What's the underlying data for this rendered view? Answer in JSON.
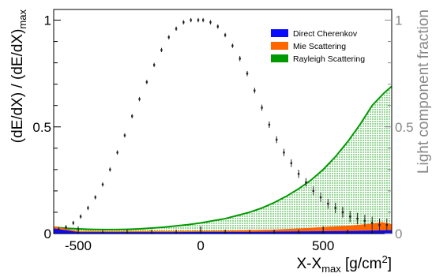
{
  "chart_data": {
    "type": "area",
    "title": "",
    "xlabel": {
      "base": "X-X",
      "sub": "max",
      "unit": " [g/cm",
      "sup": "2",
      "close": "]"
    },
    "ylabel": {
      "base": "(dE/dX) / (dE/dX)",
      "sub": "max"
    },
    "ylabel_right": "Light component fraction",
    "xlim": [
      -600,
      780
    ],
    "ylim": [
      0,
      1.05
    ],
    "ylim_right": [
      0,
      1.05
    ],
    "x_ticks": [
      -500,
      0,
      500
    ],
    "x_tick_labels": [
      "-500",
      "0",
      "500"
    ],
    "y_ticks": [
      0,
      0.5,
      1
    ],
    "y_tick_labels": [
      "0",
      "0.5",
      "1"
    ],
    "y_ticks_right": [
      0,
      0.5,
      1
    ],
    "y_tick_labels_right": [
      "0",
      "0.5",
      "1"
    ],
    "grid": false,
    "legend_position": "top-right",
    "colors": {
      "direct": "#0a0aff",
      "mie": "#ff6600",
      "rayleigh": "#009900",
      "rayleigh_fill": "#b3dbb3",
      "profile": "#222222",
      "right_axis": "#888888"
    },
    "series": [
      {
        "name": "Direct Cherenkov",
        "axis": "right",
        "style": "filled",
        "x": [
          -600,
          -500,
          -400,
          -300,
          -200,
          -100,
          0,
          100,
          200,
          300,
          400,
          500,
          600,
          700,
          780
        ],
        "y": [
          0.02,
          0.003,
          0.003,
          0.003,
          0.003,
          0.003,
          0.004,
          0.004,
          0.004,
          0.005,
          0.006,
          0.007,
          0.008,
          0.01,
          0.012
        ]
      },
      {
        "name": "Mie Scattering",
        "axis": "right",
        "style": "filled",
        "x": [
          -600,
          -500,
          -400,
          -300,
          -200,
          -100,
          0,
          100,
          200,
          300,
          400,
          500,
          600,
          700,
          740,
          780
        ],
        "y": [
          0.03,
          0.008,
          0.007,
          0.007,
          0.008,
          0.008,
          0.009,
          0.01,
          0.012,
          0.015,
          0.02,
          0.027,
          0.033,
          0.042,
          0.05,
          0.04
        ]
      },
      {
        "name": "Rayleigh Scattering",
        "axis": "right",
        "style": "filled",
        "x": [
          -600,
          -550,
          -500,
          -450,
          -400,
          -350,
          -300,
          -250,
          -200,
          -150,
          -100,
          -50,
          0,
          50,
          100,
          150,
          200,
          250,
          300,
          350,
          400,
          450,
          500,
          550,
          600,
          650,
          700,
          750,
          780
        ],
        "y": [
          0.03,
          0.025,
          0.022,
          0.02,
          0.019,
          0.019,
          0.02,
          0.022,
          0.026,
          0.03,
          0.036,
          0.042,
          0.05,
          0.06,
          0.07,
          0.085,
          0.1,
          0.12,
          0.145,
          0.175,
          0.21,
          0.25,
          0.3,
          0.36,
          0.43,
          0.51,
          0.6,
          0.66,
          0.69
        ]
      },
      {
        "name": "",
        "axis": "left",
        "style": "markers-with-errors",
        "x": [
          -580,
          -550,
          -520,
          -490,
          -460,
          -430,
          -400,
          -370,
          -340,
          -310,
          -280,
          -250,
          -220,
          -190,
          -160,
          -130,
          -100,
          -70,
          -40,
          -10,
          10,
          40,
          70,
          100,
          130,
          160,
          190,
          220,
          250,
          280,
          310,
          340,
          370,
          400,
          430,
          460,
          490,
          520,
          550,
          580,
          610,
          640,
          670,
          700,
          730,
          760
        ],
        "y": [
          0.02,
          0.03,
          0.05,
          0.08,
          0.12,
          0.17,
          0.23,
          0.3,
          0.38,
          0.46,
          0.55,
          0.63,
          0.71,
          0.79,
          0.86,
          0.92,
          0.96,
          0.99,
          1.0,
          1.0,
          1.0,
          0.99,
          0.97,
          0.93,
          0.88,
          0.82,
          0.75,
          0.67,
          0.59,
          0.51,
          0.44,
          0.38,
          0.33,
          0.28,
          0.24,
          0.2,
          0.17,
          0.14,
          0.12,
          0.1,
          0.08,
          0.07,
          0.06,
          0.05,
          0.04,
          0.04
        ],
        "err": [
          0.01,
          0.01,
          0.01,
          0.01,
          0.01,
          0.01,
          0.01,
          0.01,
          0.01,
          0.01,
          0.01,
          0.01,
          0.01,
          0.01,
          0.01,
          0.01,
          0.01,
          0.01,
          0.01,
          0.01,
          0.01,
          0.01,
          0.01,
          0.01,
          0.01,
          0.012,
          0.012,
          0.013,
          0.014,
          0.015,
          0.016,
          0.017,
          0.018,
          0.019,
          0.02,
          0.021,
          0.022,
          0.023,
          0.024,
          0.025,
          0.026,
          0.027,
          0.028,
          0.029,
          0.03,
          0.03
        ]
      }
    ]
  }
}
